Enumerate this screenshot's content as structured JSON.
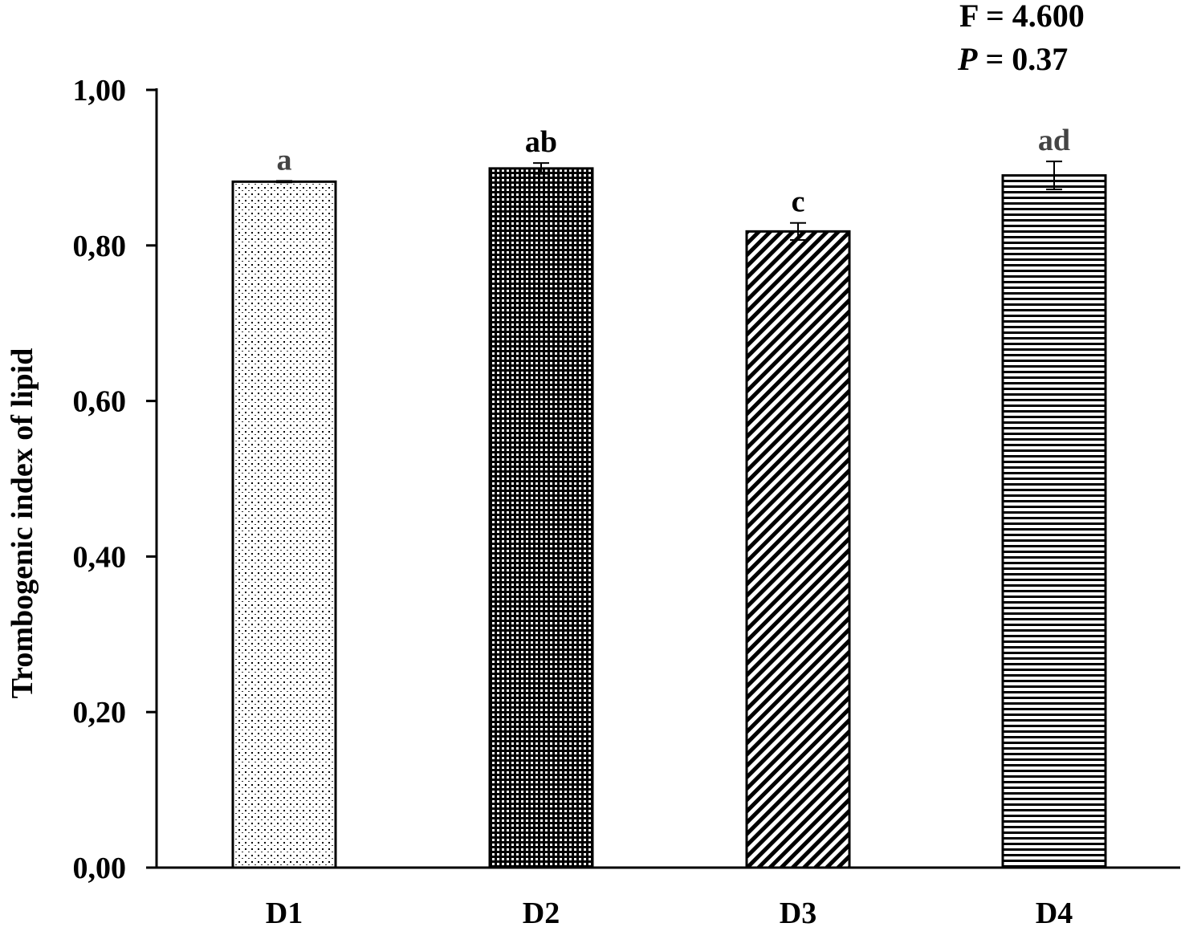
{
  "chart_data": {
    "type": "bar",
    "title": "",
    "xlabel": "",
    "ylabel": "Trombogenic index of lipid",
    "ylim": [
      0,
      1.0
    ],
    "yticks": [
      "0,00",
      "0,20",
      "0,40",
      "0,60",
      "0,80",
      "1,00"
    ],
    "ytick_values": [
      0,
      0.2,
      0.4,
      0.6,
      0.8,
      1.0
    ],
    "categories": [
      "D1",
      "D2",
      "D3",
      "D4"
    ],
    "values": [
      0.882,
      0.899,
      0.818,
      0.89
    ],
    "errors": [
      0.001,
      0.007,
      0.011,
      0.018
    ],
    "significance_letters": [
      "a",
      "ab",
      "c",
      "ad"
    ],
    "patterns": [
      "fine-dots",
      "dense-grid",
      "diagonal",
      "horizontal-lines"
    ],
    "grid": false,
    "annotations": {
      "f_stat": "F = 4.600",
      "p_label": "P",
      "p_value": " = 0.37"
    }
  }
}
